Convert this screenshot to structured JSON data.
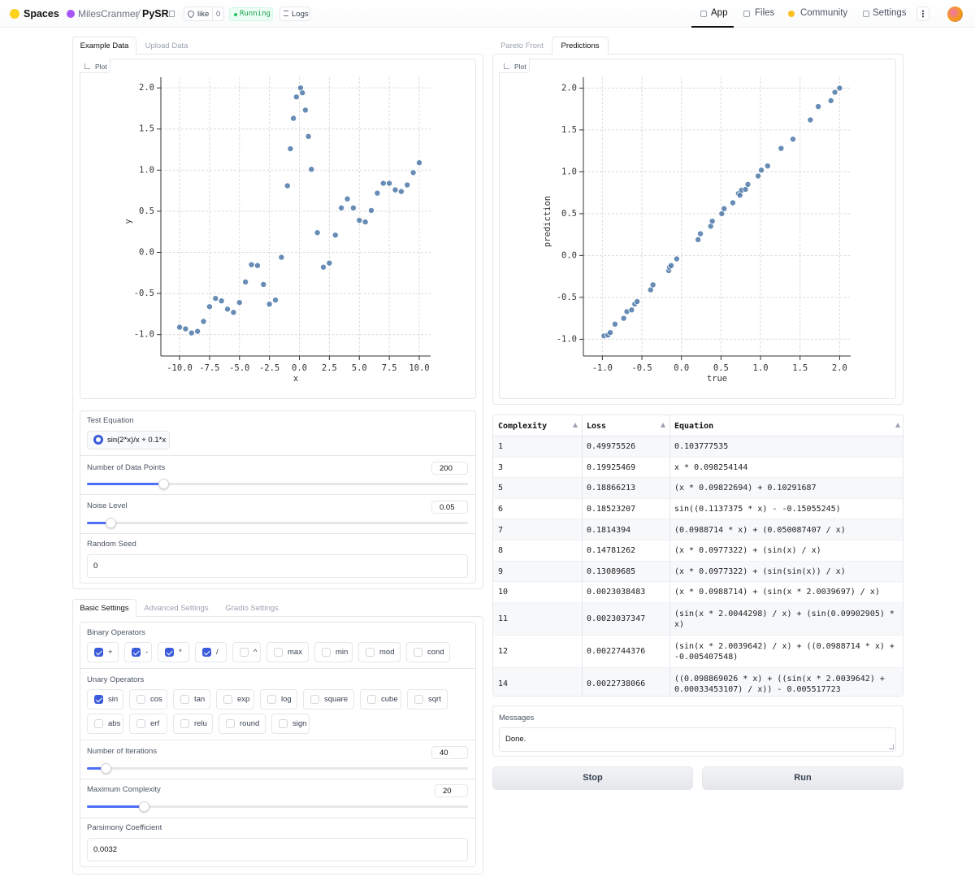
{
  "header": {
    "brand": "Spaces",
    "owner": "MilesCranmer",
    "repo": "PySR",
    "like": "like",
    "likes": "0",
    "status": "Running",
    "logs": "Logs",
    "nav": [
      "App",
      "Files",
      "Community",
      "Settings"
    ]
  },
  "data_tabs": [
    "Example Data",
    "Upload Data"
  ],
  "plot_label": "Plot",
  "chart_data": [
    {
      "type": "scatter",
      "xlabel": "x",
      "ylabel": "y",
      "color": "#4c78a8",
      "grid": true,
      "x": [
        -10,
        -9.5,
        -9,
        -8.5,
        -8,
        -7.5,
        -7,
        -6.5,
        -6,
        -5.5,
        -5,
        -4.5,
        -4,
        -3.5,
        -3,
        -2.5,
        -2,
        -1.5,
        -1,
        -0.75,
        -0.5,
        -0.25,
        0.1,
        0.25,
        0.5,
        0.75,
        1,
        1.5,
        2,
        2.5,
        3,
        3.5,
        4,
        4.5,
        5,
        5.5,
        6,
        6.5,
        7,
        7.5,
        8,
        8.5,
        9,
        9.5,
        10
      ],
      "y": [
        -0.91,
        -0.93,
        -0.98,
        -0.96,
        -0.84,
        -0.66,
        -0.56,
        -0.59,
        -0.69,
        -0.73,
        -0.61,
        -0.36,
        -0.15,
        -0.16,
        -0.39,
        -0.63,
        -0.58,
        -0.06,
        0.81,
        1.26,
        1.63,
        1.89,
        2.0,
        1.94,
        1.73,
        1.41,
        1.01,
        0.24,
        -0.18,
        -0.13,
        0.21,
        0.54,
        0.65,
        0.54,
        0.39,
        0.37,
        0.51,
        0.72,
        0.84,
        0.84,
        0.76,
        0.74,
        0.82,
        0.97,
        1.09
      ],
      "xlim": [
        -11.56,
        10.95
      ],
      "ylim": [
        -1.26,
        2.13
      ],
      "xticks": [
        {
          "value": -10,
          "label": "-10.0"
        },
        -7.5,
        {
          "value": -5,
          "label": "-5.0"
        },
        -2.5,
        {
          "value": 0,
          "label": "0.0"
        },
        2.5,
        {
          "value": 5,
          "label": "5.0"
        },
        7.5,
        {
          "value": 10,
          "label": "10.0"
        }
      ],
      "yticks": [
        {
          "value": -1,
          "label": "-1.0"
        },
        -0.5,
        {
          "value": 0,
          "label": "0.0"
        },
        0.5,
        {
          "value": 1,
          "label": "1.0"
        },
        1.5,
        {
          "value": 2,
          "label": "2.0"
        }
      ]
    },
    {
      "type": "scatter",
      "xlabel": "true",
      "ylabel": "prediction",
      "color": "#4c78a8",
      "grid": true,
      "x": [
        -0.98,
        -0.93,
        -0.9,
        -0.84,
        -0.73,
        -0.69,
        -0.63,
        -0.59,
        -0.56,
        -0.39,
        -0.36,
        -0.16,
        -0.15,
        -0.13,
        -0.06,
        0.21,
        0.24,
        0.37,
        0.39,
        0.51,
        0.54,
        0.65,
        0.72,
        0.74,
        0.76,
        0.81,
        0.84,
        0.97,
        1.01,
        1.09,
        1.26,
        1.41,
        1.63,
        1.73,
        1.89,
        1.94,
        2.0
      ],
      "y": [
        -0.96,
        -0.95,
        -0.92,
        -0.82,
        -0.75,
        -0.67,
        -0.65,
        -0.58,
        -0.55,
        -0.41,
        -0.35,
        -0.18,
        -0.14,
        -0.12,
        -0.04,
        0.19,
        0.26,
        0.35,
        0.41,
        0.5,
        0.56,
        0.63,
        0.74,
        0.72,
        0.78,
        0.79,
        0.85,
        0.95,
        1.02,
        1.07,
        1.28,
        1.39,
        1.62,
        1.78,
        1.85,
        1.95,
        2.0
      ],
      "xlim": [
        -1.24,
        2.14
      ],
      "ylim": [
        -1.2,
        2.13
      ],
      "xticks": [
        {
          "value": -1,
          "label": "-1.0"
        },
        -0.5,
        {
          "value": 0,
          "label": "0.0"
        },
        0.5,
        {
          "value": 1,
          "label": "1.0"
        },
        1.5,
        {
          "value": 2,
          "label": "2.0"
        }
      ],
      "yticks": [
        {
          "value": -1,
          "label": "-1.0"
        },
        -0.5,
        {
          "value": 0,
          "label": "0.0"
        },
        0.5,
        {
          "value": 1,
          "label": "1.0"
        },
        1.5,
        {
          "value": 2,
          "label": "2.0"
        }
      ]
    }
  ],
  "test_equation": {
    "label": "Test Equation",
    "option": "sin(2*x)/x + 0.1*x"
  },
  "data_points": {
    "label": "Number of Data Points",
    "value": 200
  },
  "noise_level": {
    "label": "Noise Level",
    "value": 0.05
  },
  "random_seed": {
    "label": "Random Seed",
    "value": 0
  },
  "settings_tabs": [
    "Basic Settings",
    "Advanced Settings",
    "Gradio Settings"
  ],
  "binary_operators": {
    "label": "Binary Operators",
    "options": [
      {
        "label": "+",
        "checked": true
      },
      {
        "label": "-",
        "checked": true
      },
      {
        "label": "*",
        "checked": true
      },
      {
        "label": "/",
        "checked": true
      },
      {
        "label": "^",
        "checked": false
      },
      {
        "label": "max",
        "checked": false
      },
      {
        "label": "min",
        "checked": false
      },
      {
        "label": "mod",
        "checked": false
      },
      {
        "label": "cond",
        "checked": false
      }
    ]
  },
  "unary_operators": {
    "label": "Unary Operators",
    "options": [
      {
        "label": "sin",
        "checked": true
      },
      {
        "label": "cos",
        "checked": false
      },
      {
        "label": "tan",
        "checked": false
      },
      {
        "label": "exp",
        "checked": false
      },
      {
        "label": "log",
        "checked": false
      },
      {
        "label": "square",
        "checked": false
      },
      {
        "label": "cube",
        "checked": false
      },
      {
        "label": "sqrt",
        "checked": false
      },
      {
        "label": "abs",
        "checked": false
      },
      {
        "label": "erf",
        "checked": false
      },
      {
        "label": "relu",
        "checked": false
      },
      {
        "label": "round",
        "checked": false
      },
      {
        "label": "sign",
        "checked": false
      }
    ]
  },
  "iterations": {
    "label": "Number of Iterations",
    "value": 40
  },
  "max_complexity": {
    "label": "Maximum Complexity",
    "value": 20
  },
  "parsimony": {
    "label": "Parsimony Coefficient",
    "value": 0.0032
  },
  "result_tabs": [
    "Pareto Front",
    "Predictions"
  ],
  "table": {
    "columns": [
      "Complexity",
      "Loss",
      "Equation"
    ],
    "rows": [
      [
        1,
        0.49975526,
        "0.103777535"
      ],
      [
        3,
        0.19925469,
        "x * 0.098254144"
      ],
      [
        5,
        0.18866213,
        "(x * 0.09822694) + 0.10291687"
      ],
      [
        6,
        0.18523207,
        "sin((0.1137375 * x) - -0.15055245)"
      ],
      [
        7,
        0.1814394,
        "(0.0988714 * x) + (0.050087407 / x)"
      ],
      [
        8,
        0.14781262,
        "(x * 0.0977322) + (sin(x) / x)"
      ],
      [
        9,
        0.13089685,
        "(x * 0.0977322) + (sin(sin(x)) / x)"
      ],
      [
        10,
        0.0023038483,
        "(x * 0.0988714) + (sin(x * 2.0039697) / x)"
      ],
      [
        11,
        0.0023037347,
        "(sin(x * 2.0044298) / x) + (sin(0.09902905) * x)"
      ],
      [
        12,
        0.0022744376,
        "(sin(x * 2.0039642) / x) + ((0.0988714 * x) + -0.005407548)"
      ],
      [
        14,
        0.0022738066,
        "((0.098869026 * x) + ((sin(x * 2.0039642) + 0.00033453107) / x)) - 0.005517723"
      ]
    ]
  },
  "messages": {
    "label": "Messages",
    "value": "Done."
  },
  "buttons": [
    "Stop",
    "Run"
  ]
}
